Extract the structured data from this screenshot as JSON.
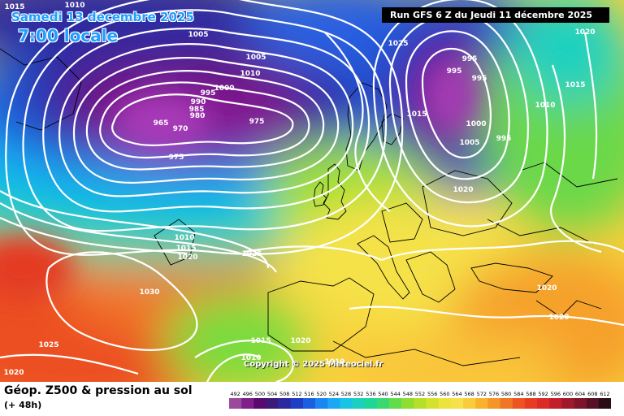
{
  "header": {
    "date": "Samedi 13 decembre 2025",
    "time": "7:00 locale",
    "run": "Run GFS 6 Z du Jeudi 11 décembre 2025"
  },
  "copyright": "Copyright © 2025 Meteociel.fr",
  "footer": {
    "title": "Géop. Z500 & pression au sol",
    "subtitle": "(+ 48h)"
  },
  "scale": {
    "values": [
      "492",
      "496",
      "500",
      "504",
      "508",
      "512",
      "516",
      "520",
      "524",
      "528",
      "532",
      "536",
      "540",
      "544",
      "548",
      "552",
      "556",
      "560",
      "564",
      "568",
      "572",
      "576",
      "580",
      "584",
      "588",
      "592",
      "596",
      "600",
      "604",
      "608",
      "612"
    ],
    "colors": [
      "#9b4a9b",
      "#7f1f8a",
      "#5a0a6e",
      "#3c1a7a",
      "#2a2a9e",
      "#1c3fc4",
      "#1a5fe0",
      "#1a86f2",
      "#1aa8f5",
      "#17c4e6",
      "#1ad1c0",
      "#1fd69a",
      "#37d970",
      "#62dc48",
      "#8ede30",
      "#b4e02a",
      "#d4e22c",
      "#ece43a",
      "#f7e14a",
      "#f9cc3b",
      "#f8b22e",
      "#f49528",
      "#f07524",
      "#ec5522",
      "#e83c22",
      "#dc2a26",
      "#c21e2a",
      "#a0182c",
      "#7e142a",
      "#581024",
      "#2a0c16"
    ]
  },
  "pressure_labels": [
    "1015",
    "1010",
    "1010",
    "1005",
    "1005",
    "1010",
    "1000",
    "995",
    "990",
    "985",
    "980",
    "965",
    "970",
    "975",
    "975",
    "1010",
    "1015",
    "1020",
    "1025",
    "1030",
    "1025",
    "1020",
    "1015",
    "1020",
    "1010",
    "1010",
    "1020",
    "995",
    "995",
    "995",
    "1015",
    "1000",
    "1005",
    "995",
    "1020",
    "1020",
    "1015",
    "1010",
    "1025",
    "1020",
    "1020"
  ]
}
